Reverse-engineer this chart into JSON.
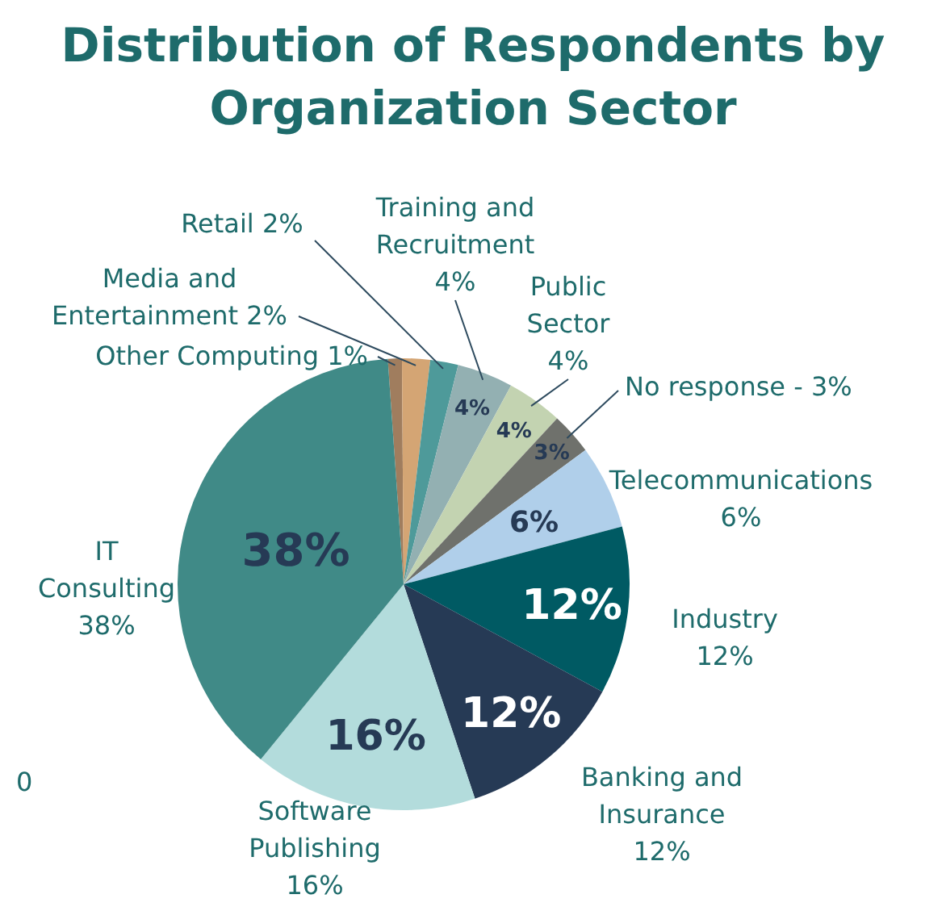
{
  "chart_data": {
    "type": "pie",
    "title": "Distribution of Respondents by\nOrganization Sector",
    "categories": [
      "Other Computing 1%",
      "Media and\nEntertainment 2%",
      "Retail 2%",
      "Training and\nRecruitment\n4%",
      "Public\nSector\n4%",
      "No response - 3%",
      "Telecommunications\n6%",
      "Industry\n12%",
      "Banking and\nInsurance\n12%",
      "Software\nPublishing\n16%",
      "IT\nConsulting\n38%"
    ],
    "values": [
      1,
      2,
      2,
      4,
      4,
      3,
      6,
      12,
      12,
      16,
      38
    ],
    "colors": [
      "#a07d5e",
      "#d4a574",
      "#4e9a9a",
      "#93b0b2",
      "#c3d3b1",
      "#6f716c",
      "#b0cfea",
      "#005a63",
      "#263a55",
      "#b3dcdc",
      "#408a87"
    ],
    "value_labels": [
      null,
      null,
      null,
      "4%",
      "4%",
      "3%",
      "6%",
      "12%",
      "12%",
      "16%",
      "38%"
    ],
    "annotations": [
      "0"
    ]
  }
}
